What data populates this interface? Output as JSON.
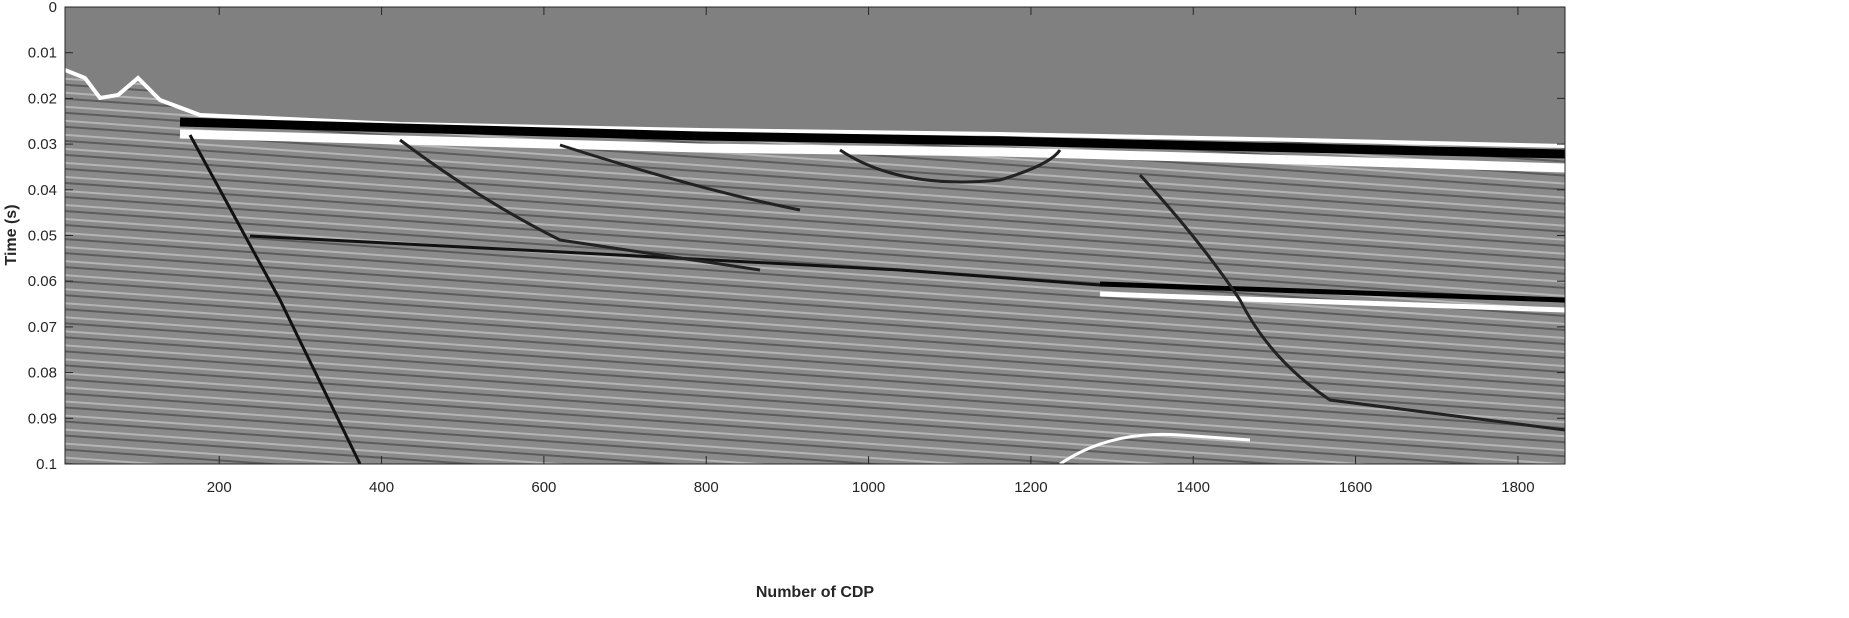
{
  "chart_data": {
    "type": "image",
    "xlabel": "Number of CDP",
    "ylabel": "Time (s)",
    "xlim": [
      10,
      1858
    ],
    "xticks": [
      200,
      400,
      600,
      800,
      1000,
      1200,
      1400,
      1600,
      1800
    ],
    "ylim": [
      0,
      0.1
    ],
    "yticks": [
      0,
      0.01,
      0.02,
      0.03,
      0.04,
      0.05,
      0.06,
      0.07,
      0.08,
      0.09,
      0.1
    ],
    "yreverse": true,
    "colormap": "gray"
  }
}
